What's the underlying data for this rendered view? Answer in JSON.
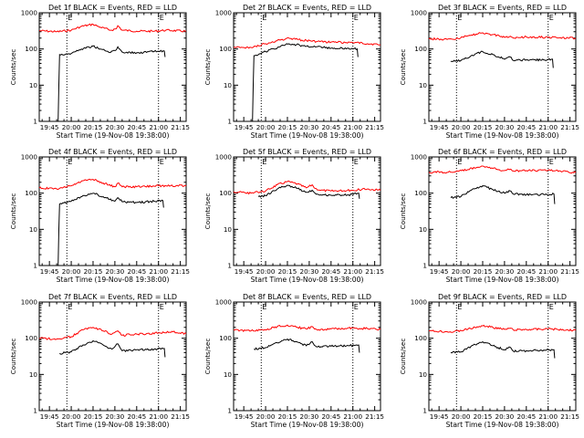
{
  "chart_data": [
    {
      "type": "line",
      "title": "Det 1f BLACK = Events, RED = LLD",
      "xlabel": "Start Time (19-Nov-08 19:38:00)",
      "ylabel": "Counts/sec",
      "x_ticks": [
        "19:45",
        "20:00",
        "20:15",
        "20:30",
        "20:45",
        "21:00",
        "21:15"
      ],
      "y_ticks": [
        "1",
        "10",
        "100",
        "1000"
      ],
      "ylim": [
        1,
        1000
      ],
      "y_scale": "log",
      "xlim": [
        "19:38",
        "21:19"
      ],
      "markers": [
        "E",
        "E"
      ],
      "marker_times": [
        "19:57",
        "21:00"
      ],
      "series": [
        {
          "name": "RED",
          "color": "#ff0000",
          "x": [
            "19:38",
            "19:50",
            "20:00",
            "20:07",
            "20:15",
            "20:20",
            "20:27",
            "20:31",
            "20:32",
            "20:35",
            "20:45",
            "20:57",
            "21:05",
            "21:19"
          ],
          "y": [
            320,
            300,
            330,
            420,
            480,
            400,
            330,
            360,
            440,
            330,
            310,
            310,
            330,
            310
          ]
        },
        {
          "name": "BLACK",
          "color": "#000000",
          "x": [
            "19:51",
            "19:51.5",
            "19:52",
            "20:00",
            "20:07",
            "20:15",
            "20:20",
            "20:27",
            "20:31",
            "20:32",
            "20:35",
            "20:45",
            "20:57",
            "21:04",
            "21:04.5"
          ],
          "y": [
            1,
            10,
            70,
            75,
            100,
            120,
            100,
            80,
            95,
            115,
            82,
            78,
            85,
            88,
            60
          ]
        }
      ]
    },
    {
      "type": "line",
      "title": "Det 2f BLACK = Events, RED = LLD",
      "xlabel": "Start Time (19-Nov-08 19:38:00)",
      "ylabel": "Counts/sec",
      "x_ticks": [
        "19:45",
        "20:00",
        "20:15",
        "20:30",
        "20:45",
        "21:00",
        "21:15"
      ],
      "y_ticks": [
        "1",
        "10",
        "100",
        "1000"
      ],
      "ylim": [
        1,
        1000
      ],
      "y_scale": "log",
      "xlim": [
        "19:38",
        "21:19"
      ],
      "markers": [
        "E",
        "E"
      ],
      "marker_times": [
        "19:57",
        "21:00"
      ],
      "series": [
        {
          "name": "RED",
          "color": "#ff0000",
          "x": [
            "19:38",
            "19:50",
            "20:00",
            "20:10",
            "20:16",
            "20:25",
            "20:35",
            "20:45",
            "21:00",
            "21:10",
            "21:19"
          ],
          "y": [
            110,
            110,
            140,
            175,
            200,
            175,
            160,
            155,
            150,
            140,
            130
          ]
        },
        {
          "name": "BLACK",
          "color": "#000000",
          "x": [
            "19:51",
            "19:51.5",
            "19:52",
            "20:00",
            "20:10",
            "20:16",
            "20:25",
            "20:35",
            "20:45",
            "20:57",
            "21:03",
            "21:03.5"
          ],
          "y": [
            1,
            10,
            65,
            85,
            115,
            140,
            125,
            115,
            105,
            105,
            100,
            60
          ]
        }
      ]
    },
    {
      "type": "line",
      "title": "Det 3f BLACK = Events, RED = LLD",
      "xlabel": "Start Time (19-Nov-08 19:38:00)",
      "ylabel": "Counts/sec",
      "x_ticks": [
        "19:45",
        "20:00",
        "20:15",
        "20:30",
        "20:45",
        "21:00",
        "21:15"
      ],
      "y_ticks": [
        "1",
        "10",
        "100",
        "1000"
      ],
      "ylim": [
        1,
        1000
      ],
      "y_scale": "log",
      "xlim": [
        "19:38",
        "21:19"
      ],
      "markers": [
        "E",
        "E"
      ],
      "marker_times": [
        "19:57",
        "21:00"
      ],
      "series": [
        {
          "name": "RED",
          "color": "#ff0000",
          "x": [
            "19:38",
            "19:55",
            "20:05",
            "20:15",
            "20:22",
            "20:30",
            "20:34",
            "20:36",
            "20:45",
            "21:00",
            "21:19"
          ],
          "y": [
            190,
            185,
            230,
            280,
            250,
            210,
            225,
            200,
            215,
            210,
            200
          ]
        },
        {
          "name": "BLACK",
          "color": "#000000",
          "x": [
            "19:53",
            "20:00",
            "20:07",
            "20:15",
            "20:22",
            "20:30",
            "20:34",
            "20:36",
            "20:45",
            "20:57",
            "21:03",
            "21:03.5"
          ],
          "y": [
            45,
            48,
            65,
            85,
            70,
            52,
            60,
            48,
            50,
            50,
            52,
            30
          ]
        }
      ]
    },
    {
      "type": "line",
      "title": "Det 4f BLACK = Events, RED = LLD",
      "xlabel": "Start Time (19-Nov-08 19:38:00)",
      "ylabel": "Counts/sec",
      "x_ticks": [
        "19:45",
        "20:00",
        "20:15",
        "20:30",
        "20:45",
        "21:00",
        "21:15"
      ],
      "y_ticks": [
        "1",
        "10",
        "100",
        "1000"
      ],
      "ylim": [
        1,
        1000
      ],
      "y_scale": "log",
      "xlim": [
        "19:38",
        "21:19"
      ],
      "markers": [
        "E",
        "E"
      ],
      "marker_times": [
        "19:57",
        "21:00"
      ],
      "series": [
        {
          "name": "RED",
          "color": "#ff0000",
          "x": [
            "19:38",
            "19:50",
            "20:00",
            "20:08",
            "20:15",
            "20:22",
            "20:30",
            "20:32",
            "20:35",
            "20:45",
            "21:00",
            "21:19"
          ],
          "y": [
            140,
            130,
            160,
            220,
            240,
            190,
            150,
            190,
            150,
            150,
            160,
            160
          ]
        },
        {
          "name": "BLACK",
          "color": "#000000",
          "x": [
            "19:51",
            "19:51.5",
            "19:52",
            "20:00",
            "20:08",
            "20:15",
            "20:22",
            "20:30",
            "20:32",
            "20:35",
            "20:45",
            "20:57",
            "21:03",
            "21:03.5"
          ],
          "y": [
            1,
            10,
            50,
            60,
            85,
            100,
            80,
            60,
            75,
            58,
            55,
            60,
            62,
            40
          ]
        }
      ]
    },
    {
      "type": "line",
      "title": "Det 5f BLACK = Events, RED = LLD",
      "xlabel": "Start Time (19-Nov-08 19:38:00)",
      "ylabel": "Counts/sec",
      "x_ticks": [
        "19:45",
        "20:00",
        "20:15",
        "20:30",
        "20:45",
        "21:00",
        "21:15"
      ],
      "y_ticks": [
        "1",
        "10",
        "100",
        "1000"
      ],
      "ylim": [
        1,
        1000
      ],
      "y_scale": "log",
      "xlim": [
        "19:38",
        "21:19"
      ],
      "markers": [
        "E",
        "E"
      ],
      "marker_times": [
        "19:57",
        "21:00"
      ],
      "series": [
        {
          "name": "RED",
          "color": "#ff0000",
          "x": [
            "19:38",
            "19:50",
            "20:00",
            "20:08",
            "20:15",
            "20:22",
            "20:28",
            "20:32",
            "20:34",
            "20:38",
            "20:45",
            "21:00",
            "21:10",
            "21:19"
          ],
          "y": [
            110,
            100,
            115,
            170,
            210,
            180,
            140,
            170,
            135,
            120,
            115,
            120,
            130,
            120
          ]
        },
        {
          "name": "BLACK",
          "color": "#000000",
          "x": [
            "19:55",
            "20:00",
            "20:08",
            "20:15",
            "20:22",
            "20:28",
            "20:32",
            "20:34",
            "20:38",
            "20:45",
            "20:57",
            "21:04",
            "21:04.5"
          ],
          "y": [
            80,
            85,
            130,
            165,
            135,
            105,
            120,
            100,
            90,
            88,
            90,
            100,
            70
          ]
        }
      ]
    },
    {
      "type": "line",
      "title": "Det 6f BLACK = Events, RED = LLD",
      "xlabel": "Start Time (19-Nov-08 19:38:00)",
      "ylabel": "Counts/sec",
      "x_ticks": [
        "19:45",
        "20:00",
        "20:15",
        "20:30",
        "20:45",
        "21:00",
        "21:15"
      ],
      "y_ticks": [
        "1",
        "10",
        "100",
        "1000"
      ],
      "ylim": [
        1,
        1000
      ],
      "y_scale": "log",
      "xlim": [
        "19:38",
        "21:19"
      ],
      "markers": [
        "E",
        "E"
      ],
      "marker_times": [
        "19:57",
        "21:00"
      ],
      "series": [
        {
          "name": "RED",
          "color": "#ff0000",
          "x": [
            "19:38",
            "19:55",
            "20:05",
            "20:15",
            "20:22",
            "20:30",
            "20:34",
            "20:36",
            "20:45",
            "21:00",
            "21:10",
            "21:19"
          ],
          "y": [
            380,
            380,
            450,
            560,
            480,
            420,
            460,
            410,
            420,
            430,
            400,
            370
          ]
        },
        {
          "name": "BLACK",
          "color": "#000000",
          "x": [
            "19:53",
            "20:00",
            "20:07",
            "20:15",
            "20:22",
            "20:30",
            "20:34",
            "20:36",
            "20:45",
            "20:57",
            "21:04",
            "21:04.5"
          ],
          "y": [
            75,
            80,
            120,
            160,
            125,
            100,
            115,
            95,
            90,
            92,
            95,
            50
          ]
        }
      ]
    },
    {
      "type": "line",
      "title": "Det 7f BLACK = Events, RED = LLD",
      "xlabel": "Start Time (19-Nov-08 19:38:00)",
      "ylabel": "Counts/sec",
      "x_ticks": [
        "19:45",
        "20:00",
        "20:15",
        "20:30",
        "20:45",
        "21:00",
        "21:15"
      ],
      "y_ticks": [
        "1",
        "10",
        "100",
        "1000"
      ],
      "ylim": [
        1,
        1000
      ],
      "y_scale": "log",
      "xlim": [
        "19:38",
        "21:19"
      ],
      "markers": [
        "E",
        "E"
      ],
      "marker_times": [
        "19:57",
        "21:00"
      ],
      "series": [
        {
          "name": "RED",
          "color": "#ff0000",
          "x": [
            "19:38",
            "19:50",
            "20:00",
            "20:08",
            "20:15",
            "20:22",
            "20:28",
            "20:32",
            "20:35",
            "20:45",
            "21:00",
            "21:10",
            "21:19"
          ],
          "y": [
            100,
            95,
            110,
            170,
            200,
            160,
            130,
            160,
            120,
            130,
            140,
            150,
            135
          ]
        },
        {
          "name": "BLACK",
          "color": "#000000",
          "x": [
            "19:52",
            "20:00",
            "20:08",
            "20:15",
            "20:22",
            "20:28",
            "20:32",
            "20:35",
            "20:45",
            "20:57",
            "21:04",
            "21:04.5"
          ],
          "y": [
            38,
            42,
            65,
            85,
            65,
            50,
            70,
            45,
            48,
            50,
            52,
            30
          ]
        }
      ]
    },
    {
      "type": "line",
      "title": "Det 8f BLACK = Events, RED = LLD",
      "xlabel": "Start Time (19-Nov-08 19:38:00)",
      "ylabel": "Counts/sec",
      "x_ticks": [
        "19:45",
        "20:00",
        "20:15",
        "20:30",
        "20:45",
        "21:00",
        "21:15"
      ],
      "y_ticks": [
        "1",
        "10",
        "100",
        "1000"
      ],
      "ylim": [
        1,
        1000
      ],
      "y_scale": "log",
      "xlim": [
        "19:38",
        "21:19"
      ],
      "markers": [
        "E",
        "E"
      ],
      "marker_times": [
        "19:57",
        "21:00"
      ],
      "series": [
        {
          "name": "RED",
          "color": "#ff0000",
          "x": [
            "19:38",
            "19:50",
            "20:00",
            "20:08",
            "20:15",
            "20:22",
            "20:28",
            "20:32",
            "20:35",
            "20:45",
            "21:00",
            "21:10",
            "21:19"
          ],
          "y": [
            170,
            160,
            170,
            210,
            230,
            200,
            180,
            210,
            175,
            180,
            190,
            185,
            175
          ]
        },
        {
          "name": "BLACK",
          "color": "#000000",
          "x": [
            "19:52",
            "20:00",
            "20:08",
            "20:15",
            "20:22",
            "20:28",
            "20:32",
            "20:35",
            "20:45",
            "20:57",
            "21:04",
            "21:04.5"
          ],
          "y": [
            50,
            55,
            75,
            95,
            78,
            62,
            80,
            58,
            60,
            62,
            65,
            40
          ]
        }
      ]
    },
    {
      "type": "line",
      "title": "Det 9f BLACK = Events, RED = LLD",
      "xlabel": "Start Time (19-Nov-08 19:38:00)",
      "ylabel": "Counts/sec",
      "x_ticks": [
        "19:45",
        "20:00",
        "20:15",
        "20:30",
        "20:45",
        "21:00",
        "21:15"
      ],
      "y_ticks": [
        "1",
        "10",
        "100",
        "1000"
      ],
      "ylim": [
        1,
        1000
      ],
      "y_scale": "log",
      "xlim": [
        "19:38",
        "21:19"
      ],
      "markers": [
        "E",
        "E"
      ],
      "marker_times": [
        "19:57",
        "21:00"
      ],
      "series": [
        {
          "name": "RED",
          "color": "#ff0000",
          "x": [
            "19:38",
            "19:55",
            "20:05",
            "20:15",
            "20:22",
            "20:30",
            "20:34",
            "20:36",
            "20:45",
            "21:00",
            "21:10",
            "21:19"
          ],
          "y": [
            160,
            150,
            180,
            220,
            200,
            175,
            190,
            170,
            175,
            180,
            175,
            165
          ]
        },
        {
          "name": "BLACK",
          "color": "#000000",
          "x": [
            "19:53",
            "20:00",
            "20:07",
            "20:15",
            "20:22",
            "20:30",
            "20:34",
            "20:36",
            "20:45",
            "20:57",
            "21:04",
            "21:04.5"
          ],
          "y": [
            40,
            42,
            60,
            80,
            62,
            48,
            56,
            44,
            45,
            47,
            48,
            28
          ]
        }
      ]
    }
  ]
}
